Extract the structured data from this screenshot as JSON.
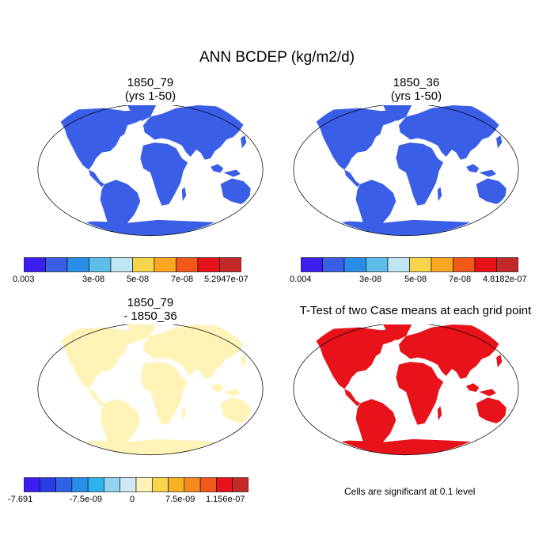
{
  "figure": {
    "title": "ANN BCDEP (kg/m2/d)",
    "panels": [
      {
        "title_line1": "1850_79",
        "title_line2": "(yrs 1-50)",
        "colorbar": {
          "colors": [
            "#3b1ff0",
            "#3a5ee6",
            "#2a8ee8",
            "#5bbde8",
            "#bfe6f2",
            "#f6d54a",
            "#f9a623",
            "#f25818",
            "#e7121a",
            "#c4292a"
          ],
          "labels": [
            "0.003",
            "3e-08",
            "5e-08",
            "7e-08",
            "5.2947e-07"
          ]
        }
      },
      {
        "title_line1": "1850_36",
        "title_line2": "(yrs 1-50)",
        "colorbar": {
          "colors": [
            "#3b1ff0",
            "#3a5ee6",
            "#2a8ee8",
            "#5bbde8",
            "#bfe6f2",
            "#f6d54a",
            "#f9a623",
            "#f25818",
            "#e7121a",
            "#c4292a"
          ],
          "labels": [
            "0.004",
            "3e-08",
            "5e-08",
            "7e-08",
            "4.8182e-07"
          ]
        }
      },
      {
        "title_line1": "1850_79",
        "title_line2": "- 1850_36",
        "colorbar": {
          "colors": [
            "#3b1ff0",
            "#2b3ee6",
            "#3062e8",
            "#2a8ee8",
            "#2eb2ee",
            "#8fd3ee",
            "#cfe8f4",
            "#fff3b8",
            "#f6d54a",
            "#f9b223",
            "#f78a1e",
            "#f25818",
            "#e7121a",
            "#c4292a"
          ],
          "labels": [
            "-7.691",
            "-7.5e-09",
            "0",
            "7.5e-09",
            "1.156e-07"
          ]
        }
      },
      {
        "title": "T-Test of two Case means at each grid point",
        "note": "Cells are significant at 0.1 level"
      }
    ]
  }
}
